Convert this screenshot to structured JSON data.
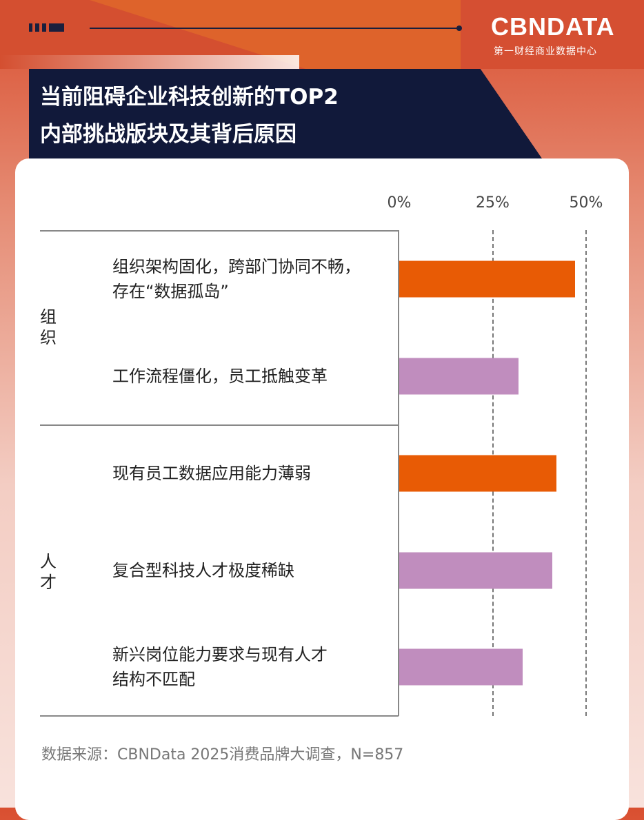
{
  "header": {
    "title_line1": "当前阻碍企业科技创新的TOP2",
    "title_line2": "内部挑战版块及其背后原因",
    "logo": "CBNDATA",
    "logo_sub": "第一财经商业数据中心"
  },
  "colors": {
    "orange": "#e85b05",
    "purple": "#c08dbe",
    "navy": "#11193a"
  },
  "chart_data": {
    "type": "bar",
    "orientation": "horizontal",
    "xlim": [
      0,
      50
    ],
    "ticks": [
      "0%",
      "25%",
      "50%"
    ],
    "tick_values": [
      0,
      25,
      50
    ],
    "grid": "dashed vertical at 25% and 50%",
    "groups": [
      {
        "name": "组织",
        "items": [
          0,
          1
        ]
      },
      {
        "name": "人才",
        "items": [
          2,
          3,
          4
        ]
      }
    ],
    "categories": [
      "组织架构固化，跨部门协同不畅，存在“数据孤岛”",
      "工作流程僵化，员工抵触变革",
      "现有员工数据应用能力薄弱",
      "复合型科技人才极度稀缺",
      "新兴岗位能力要求与现有人才结构不匹配"
    ],
    "category_lines": [
      [
        "组织架构固化，跨部门协同不畅，",
        "存在“数据孤岛”"
      ],
      [
        "工作流程僵化，员工抵触变革"
      ],
      [
        "现有员工数据应用能力薄弱"
      ],
      [
        "复合型科技人才极度稀缺"
      ],
      [
        "新兴岗位能力要求与现有人才",
        "结构不匹配"
      ]
    ],
    "values": [
      47,
      32,
      42,
      41,
      33
    ],
    "bar_colors": [
      "#e85b05",
      "#c08dbe",
      "#e85b05",
      "#c08dbe",
      "#c08dbe"
    ]
  },
  "source": "数据来源：CBNData 2025消费品牌大调查，N=857"
}
